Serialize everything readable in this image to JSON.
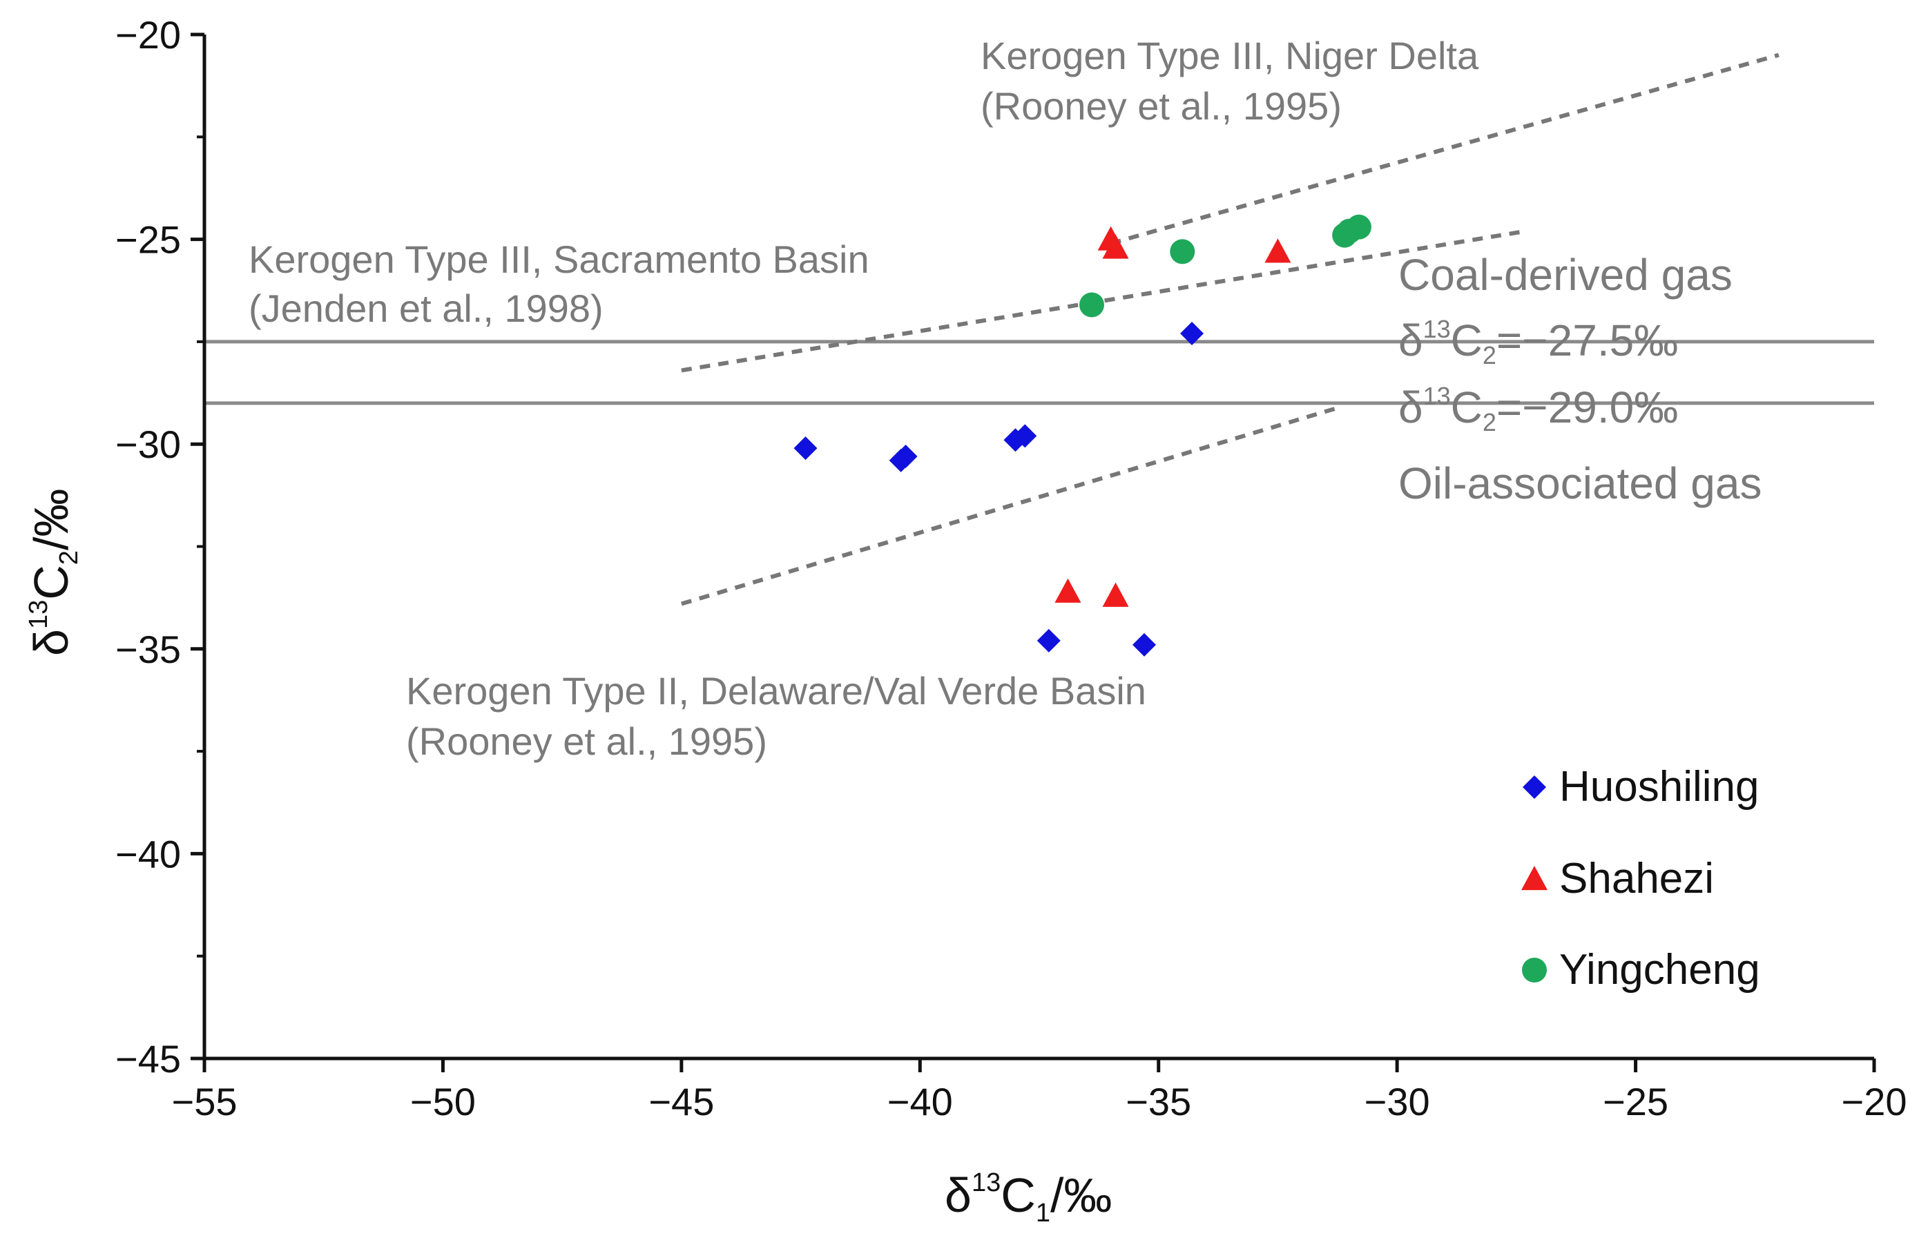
{
  "chart_data": {
    "type": "scatter",
    "xlabel": {
      "base": "δ",
      "sup": "13",
      "main": "C",
      "sub": "1",
      "unit": "/‰"
    },
    "ylabel": {
      "base": "δ",
      "sup": "13",
      "main": "C",
      "sub": "2",
      "unit": "/‰"
    },
    "xlim": [
      -55,
      -20
    ],
    "ylim": [
      -45,
      -20
    ],
    "xticks": [
      -55,
      -50,
      -45,
      -40,
      -35,
      -30,
      -25,
      -20
    ],
    "yticks": [
      -20,
      -25,
      -30,
      -35,
      -40,
      -45
    ],
    "xtick_labels": [
      "−55",
      "−50",
      "−45",
      "−40",
      "−35",
      "−30",
      "−25",
      "−20"
    ],
    "ytick_labels": [
      "−20",
      "−25",
      "−30",
      "−35",
      "−40",
      "−45"
    ],
    "grid": false,
    "legend_position": "bottom-right",
    "series": [
      {
        "name": "Huoshiling",
        "marker": "diamond",
        "color": "#1111dd",
        "points": [
          {
            "x": -42.4,
            "y": -30.1
          },
          {
            "x": -40.4,
            "y": -30.4
          },
          {
            "x": -40.3,
            "y": -30.3
          },
          {
            "x": -38.0,
            "y": -29.9
          },
          {
            "x": -37.8,
            "y": -29.8
          },
          {
            "x": -34.3,
            "y": -27.3
          },
          {
            "x": -37.3,
            "y": -34.8
          },
          {
            "x": -35.3,
            "y": -34.9
          }
        ]
      },
      {
        "name": "Shahezi",
        "marker": "triangle",
        "color": "#ee1c1c",
        "points": [
          {
            "x": -36.0,
            "y": -25.0
          },
          {
            "x": -35.9,
            "y": -25.2
          },
          {
            "x": -32.5,
            "y": -25.3
          },
          {
            "x": -36.9,
            "y": -33.6
          },
          {
            "x": -35.9,
            "y": -33.7
          }
        ]
      },
      {
        "name": "Yingcheng",
        "marker": "circle",
        "color": "#1ea85a",
        "points": [
          {
            "x": -34.5,
            "y": -25.3
          },
          {
            "x": -36.4,
            "y": -26.6
          },
          {
            "x": -31.1,
            "y": -24.9
          },
          {
            "x": -31.0,
            "y": -24.8
          },
          {
            "x": -30.8,
            "y": -24.7
          }
        ]
      }
    ],
    "reference_lines": [
      {
        "name": "coal-derived-threshold",
        "y": -27.5,
        "label": {
          "base": "δ",
          "sup": "13",
          "main": "C",
          "sub": "2",
          "value": "=−27.5‰"
        }
      },
      {
        "name": "oil-associated-threshold",
        "y": -29.0,
        "label": {
          "base": "δ",
          "sup": "13",
          "main": "C",
          "sub": "2",
          "value": "=−29.0‰"
        }
      }
    ],
    "trend_lines": [
      {
        "name": "niger-delta",
        "x1": -36.0,
        "y1": -25.1,
        "x2": -22.0,
        "y2": -20.5
      },
      {
        "name": "sacramento",
        "x1": -45.0,
        "y1": -28.2,
        "x2": -27.3,
        "y2": -24.8
      },
      {
        "name": "delaware",
        "x1": -45.0,
        "y1": -33.9,
        "x2": -31.2,
        "y2": -29.1
      }
    ],
    "annotations": {
      "niger_delta": [
        "Kerogen  Type III, Niger Delta",
        "(Rooney et al., 1995)"
      ],
      "sacramento": [
        "Kerogen  Type III, Sacramento Basin",
        "(Jenden et al., 1998)"
      ],
      "delaware": [
        "Kerogen  Type II, Delaware/Val Verde Basin",
        "(Rooney et al., 1995)"
      ],
      "coal_gas": "Coal-derived gas",
      "oil_gas": "Oil-associated gas"
    }
  }
}
